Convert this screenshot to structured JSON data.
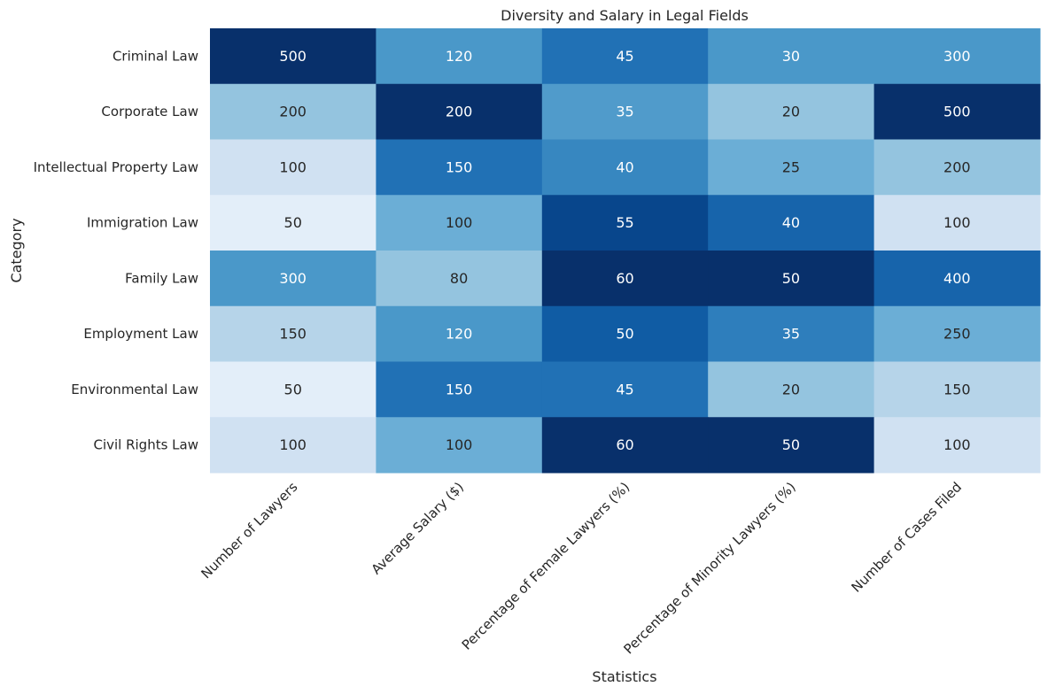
{
  "chart_data": {
    "type": "heatmap",
    "title": "Diversity and Salary in Legal Fields",
    "xlabel": "Statistics",
    "ylabel": "Category",
    "colormap": "Blues",
    "colorbar": false,
    "color_scale": "per-column",
    "columns": [
      "Number of Lawyers",
      "Average Salary ($)",
      "Percentage of Female Lawyers (%)",
      "Percentage of Minority Lawyers (%)",
      "Number of Cases Filed"
    ],
    "rows": [
      "Criminal Law",
      "Corporate Law",
      "Intellectual Property Law",
      "Immigration Law",
      "Family Law",
      "Employment Law",
      "Environmental Law",
      "Civil Rights Law"
    ],
    "values": [
      [
        500,
        120,
        45,
        30,
        300
      ],
      [
        200,
        200,
        35,
        20,
        500
      ],
      [
        100,
        150,
        40,
        25,
        200
      ],
      [
        50,
        100,
        55,
        40,
        100
      ],
      [
        300,
        80,
        60,
        50,
        400
      ],
      [
        150,
        120,
        50,
        35,
        250
      ],
      [
        50,
        150,
        45,
        20,
        150
      ],
      [
        100,
        100,
        60,
        50,
        100
      ]
    ]
  }
}
